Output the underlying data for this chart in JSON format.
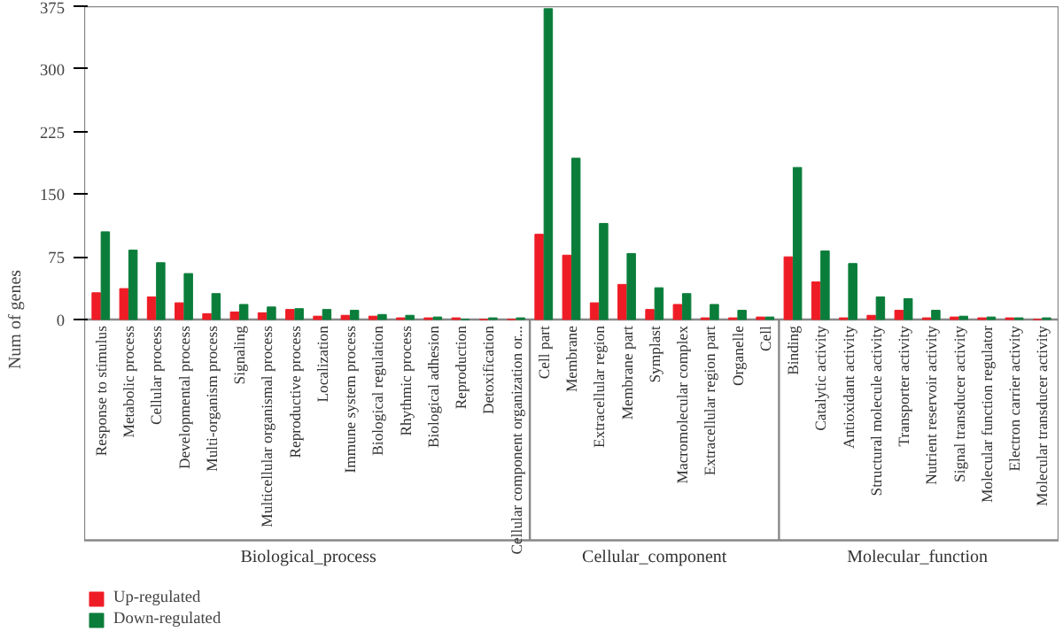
{
  "chart_data": [
    {
      "type": "bar",
      "ylabel": "Num of genes",
      "xlabel": "Biological_process",
      "categories": [
        "Response to stimulus",
        "Metabolic process",
        "Cellular process",
        "Developmental process",
        "Multi-organism process",
        "Signaling",
        "Multicellular organismal process",
        "Reproductive process",
        "Localization",
        "Immune system process",
        "Biological regulation",
        "Rhythmic process",
        "Biological adhesion",
        "Reproduction",
        "Detoxification",
        "Cellular component organization or..."
      ],
      "series": [
        {
          "name": "Up-regulated",
          "color": "#ee1c25",
          "values": [
            32,
            37,
            27,
            20,
            7,
            9,
            8,
            12,
            4,
            5,
            4,
            2,
            2,
            2,
            0,
            0
          ]
        },
        {
          "name": "Down-regulated",
          "color": "#0a7d3a",
          "values": [
            105,
            83,
            68,
            55,
            31,
            18,
            15,
            13,
            12,
            11,
            6,
            5,
            3,
            0,
            2,
            2
          ]
        }
      ],
      "ylim": [
        0,
        375
      ],
      "yticks": [
        0,
        75,
        150,
        225,
        300,
        375
      ],
      "legend": "bottom left"
    },
    {
      "type": "bar",
      "xlabel": "Cellular_component",
      "categories": [
        "Cell part",
        "Membrane",
        "Extracellular region",
        "Membrane part",
        "Symplast",
        "Macromolecular complex",
        "Extracellular region part",
        "Organelle",
        "Cell"
      ],
      "series": [
        {
          "color": "#ee1c25",
          "values": [
            102,
            77,
            20,
            42,
            12,
            18,
            2,
            2,
            3
          ]
        },
        {
          "color": "#0a7d3a",
          "values": [
            372,
            193,
            115,
            79,
            38,
            31,
            18,
            11,
            3
          ]
        }
      ],
      "ylim": [
        0,
        375
      ],
      "tick_labels": "x"
    },
    {
      "type": "bar",
      "xlabel": "Molecular_function",
      "categories": [
        "Binding",
        "Catalytic activity",
        "Antioxidant activity",
        "Structural molecule activity",
        "Transporter activity",
        "Nutrient reservoir activity",
        "Signal transducer activity",
        "Molecular function regulator",
        "Electron carrier activity",
        "Molecular transducer activity"
      ],
      "series": [
        {
          "color": "#ee1c25",
          "values": [
            75,
            45,
            2,
            5,
            11,
            2,
            3,
            2,
            2,
            0
          ]
        },
        {
          "color": "#0a7d3a",
          "values": [
            182,
            82,
            67,
            27,
            25,
            11,
            4,
            3,
            2,
            2
          ]
        }
      ],
      "ylim": [
        0,
        375
      ],
      "tick_labels": "x"
    }
  ]
}
